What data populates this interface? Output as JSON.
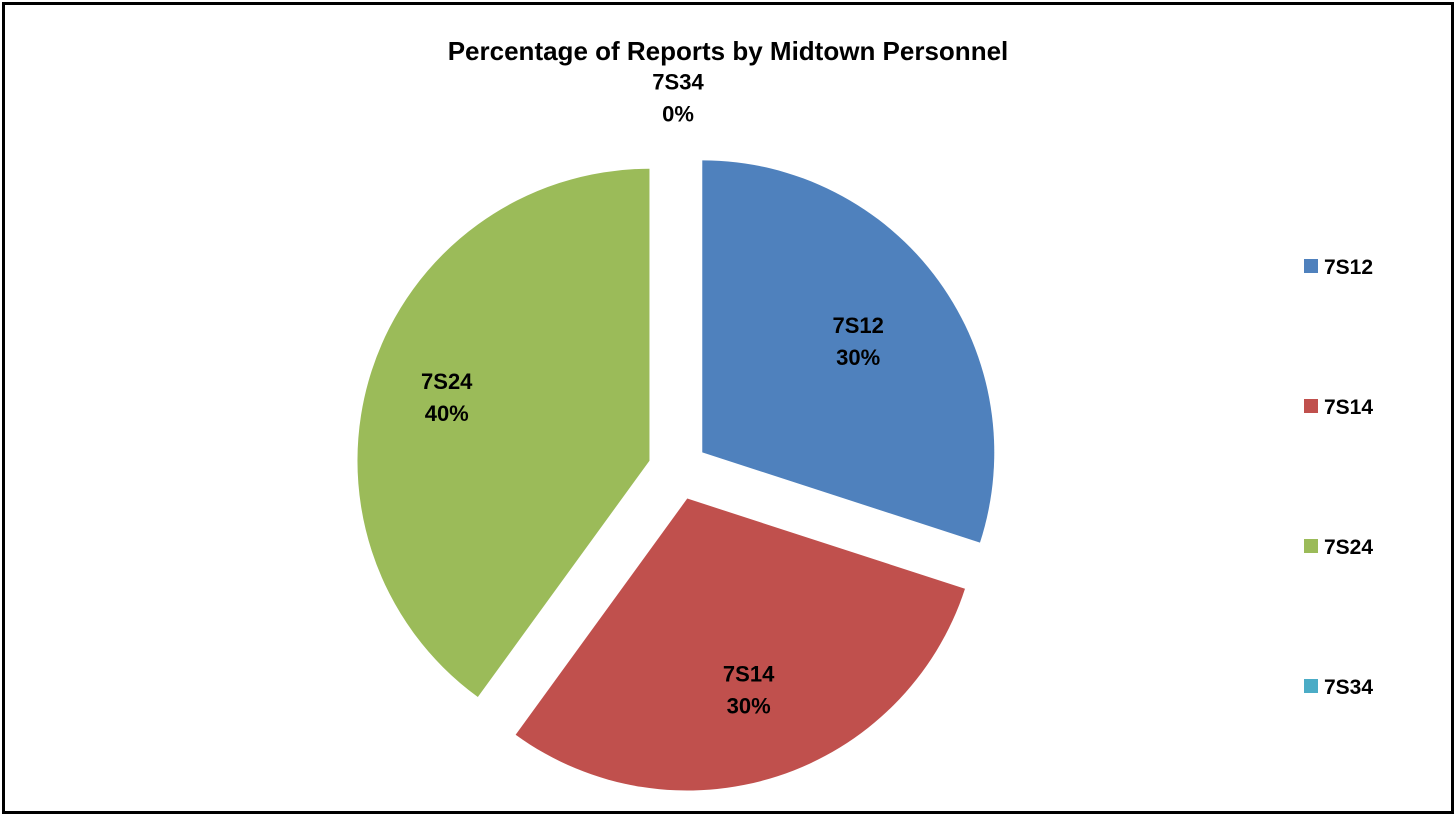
{
  "chart_data": {
    "type": "pie",
    "title": "Percentage of Reports by Midtown Personnel",
    "categories": [
      "7S12",
      "7S14",
      "7S24",
      "7S34"
    ],
    "values": [
      30,
      30,
      40,
      0
    ],
    "value_labels": [
      "30%",
      "30%",
      "40%",
      "0%"
    ],
    "colors": [
      "#4F81BD",
      "#C0504D",
      "#9BBB59",
      "#4BACC6"
    ],
    "exploded": true,
    "legend": {
      "placement": "right",
      "entries": [
        "7S12",
        "7S14",
        "7S24",
        "7S34"
      ]
    }
  }
}
